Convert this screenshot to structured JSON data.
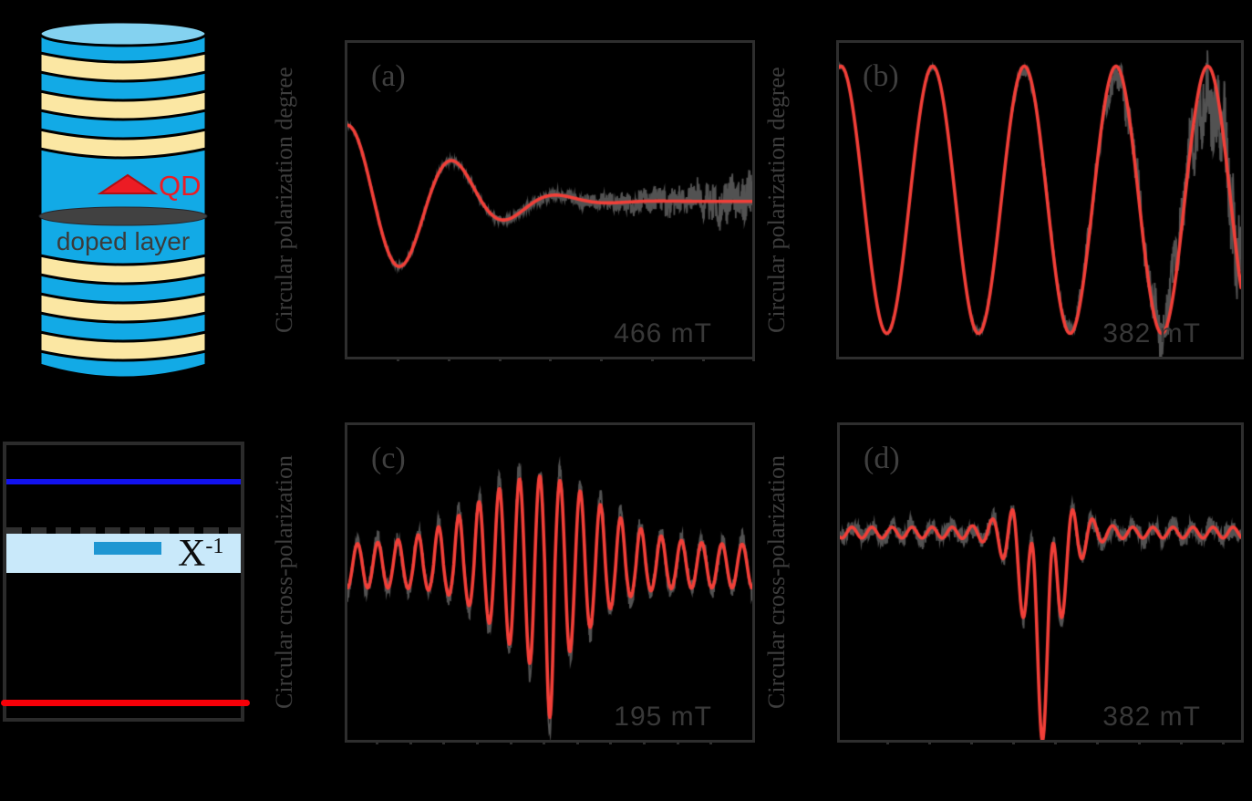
{
  "colors": {
    "background": "#000000",
    "plot_border": "#2e2e2e",
    "tick": "#2e2e2e",
    "label_dark": "#3e3e3e",
    "panel_label": "#3f3f3f",
    "field_label": "#383838",
    "fit_red": "#f23f38",
    "data_gray": "#525252",
    "pillar_blue": "#12aae6",
    "pillar_cream": "#fbe7a3",
    "pillar_cap": "#84d2f0",
    "qd_red": "#ec1c24",
    "doped_ellipse": "#414141",
    "doped_text": "#3b3b3b",
    "diagram_border": "#2b2b2b",
    "level_blue": "#1212ee",
    "level_red": "#f70008",
    "dashed_line": "#2f2f2f",
    "band_light_blue": "#c9e9fa",
    "band_inner_blue": "#1e96d2",
    "text_black": "#0b0b0b"
  },
  "pillar_diagram": {
    "qd_label": "QD",
    "doped_label": "doped layer"
  },
  "level_diagram": {
    "exciton_label": "X",
    "exciton_superscript": "-1"
  },
  "chart_data": [
    {
      "type": "line",
      "panel_label": "(a)",
      "field_label": "466 mT",
      "ylabel": "Circular polarization degree",
      "series": [
        {
          "name": "measured signal",
          "color_key": "data_gray"
        },
        {
          "name": "fit",
          "color_key": "fit_red"
        }
      ],
      "fit_model": {
        "kind": "gauss_damped_cosine",
        "baseline": -0.01,
        "amp": 0.49,
        "period": 0.265,
        "sigma": 0.33
      },
      "noise": {
        "n0": 0.015,
        "n1": 0.14,
        "pow": 3,
        "lf": 0.07,
        "lf_pow": 3,
        "seed": 11
      },
      "x_ticks": {
        "start": 0.122,
        "step": 0.1255,
        "count": 8
      }
    },
    {
      "type": "line",
      "panel_label": "(b)",
      "field_label": "382 mT",
      "ylabel": "Circular polarization degree",
      "series": [
        {
          "name": "measured signal",
          "color_key": "data_gray"
        },
        {
          "name": "fit",
          "color_key": "fit_red"
        }
      ],
      "fit_model": {
        "kind": "cosine",
        "baseline": 0.0,
        "amp": 0.86,
        "period": 0.228,
        "t0": 0.005
      },
      "noise": {
        "n0": 0.012,
        "n1": 0.32,
        "pow": 4,
        "lf": 0.22,
        "lf_pow": 3,
        "amp_fade": 0.22,
        "fade_pow": 3,
        "seed": 22
      },
      "x_ticks": {
        "start": 0.122,
        "step": 0.1255,
        "count": 0
      }
    },
    {
      "type": "line",
      "panel_label": "(c)",
      "field_label": "195 mT",
      "ylabel": "Circular cross-polarization",
      "series": [
        {
          "name": "measured signal",
          "color_key": "data_gray"
        },
        {
          "name": "fit",
          "color_key": "fit_red"
        }
      ],
      "fit_model": {
        "kind": "modulated_cosine",
        "baseline": 0.105,
        "carrier_period": 0.05,
        "t0": 0.025,
        "pos_env": {
          "base": 0.14,
          "peak": 0.44,
          "center": 0.47,
          "sigma": 0.21
        },
        "neg_env": {
          "base": 0.14,
          "peak": 0.48,
          "center": 0.48,
          "sigma": 0.15,
          "spike": 0.36,
          "spike_center": 0.5,
          "spike_sigma": 0.03
        }
      },
      "noise": {
        "n0": 0.05,
        "n1": 0.0,
        "pow": 1,
        "lf": 0.03,
        "lf_pow": 0,
        "amp_gain": 1.1,
        "seed": 33
      },
      "x_ticks": {
        "start": 0.07,
        "step": 0.0825,
        "count": 11
      }
    },
    {
      "type": "line",
      "panel_label": "(d)",
      "field_label": "382 mT",
      "ylabel": "Circular cross-polarization",
      "series": [
        {
          "name": "measured signal",
          "color_key": "data_gray"
        },
        {
          "name": "fit",
          "color_key": "fit_red"
        }
      ],
      "fit_model": {
        "kind": "echo_dip",
        "baseline": 0.32,
        "center": 0.505,
        "dslow": {
          "depth": 0.5,
          "sigma": 0.055
        },
        "dspike": {
          "depth": 0.42,
          "sigma": 0.018
        },
        "osc": {
          "period": 0.05,
          "base": 0.035,
          "peak": 0.38,
          "sigma": 0.09
        }
      },
      "noise": {
        "n0": 0.05,
        "n1": 0.0,
        "pow": 1,
        "lf": 0.03,
        "lf_pow": 0,
        "seed": 44
      },
      "x_ticks": {
        "start": 0.116,
        "step": 0.1045,
        "count": 9
      }
    }
  ]
}
